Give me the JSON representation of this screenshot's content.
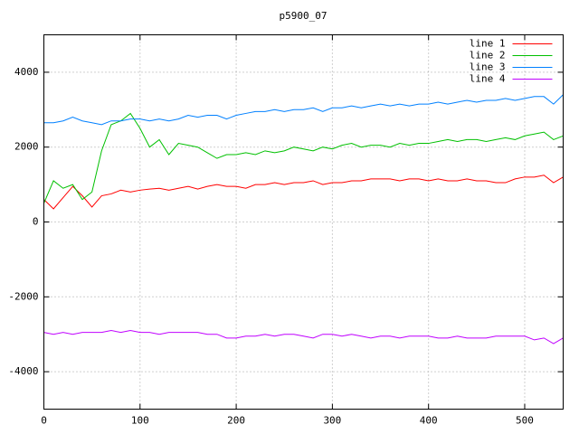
{
  "chart_data": {
    "type": "line",
    "title": "p5900_07",
    "x": [
      0,
      10,
      20,
      30,
      40,
      50,
      60,
      70,
      80,
      90,
      100,
      110,
      120,
      130,
      140,
      150,
      160,
      170,
      180,
      190,
      200,
      210,
      220,
      230,
      240,
      250,
      260,
      270,
      280,
      290,
      300,
      310,
      320,
      330,
      340,
      350,
      360,
      370,
      380,
      390,
      400,
      410,
      420,
      430,
      440,
      450,
      460,
      470,
      480,
      490,
      500,
      510,
      520,
      530,
      540
    ],
    "series": [
      {
        "name": "line 1",
        "color": "#ff0000",
        "values": [
          600,
          350,
          650,
          950,
          700,
          400,
          700,
          750,
          850,
          800,
          850,
          880,
          900,
          850,
          900,
          950,
          880,
          950,
          1000,
          950,
          950,
          900,
          1000,
          1000,
          1050,
          1000,
          1050,
          1050,
          1100,
          1000,
          1050,
          1050,
          1100,
          1100,
          1150,
          1150,
          1150,
          1100,
          1150,
          1150,
          1100,
          1150,
          1100,
          1100,
          1150,
          1100,
          1100,
          1050,
          1050,
          1150,
          1200,
          1200,
          1250,
          1050,
          1200
        ]
      },
      {
        "name": "line 2",
        "color": "#00c000",
        "values": [
          500,
          1100,
          900,
          1000,
          600,
          800,
          1900,
          2600,
          2700,
          2900,
          2500,
          2000,
          2200,
          1800,
          2100,
          2050,
          2000,
          1850,
          1700,
          1800,
          1800,
          1850,
          1800,
          1900,
          1850,
          1900,
          2000,
          1950,
          1900,
          2000,
          1950,
          2050,
          2100,
          2000,
          2050,
          2050,
          2000,
          2100,
          2050,
          2100,
          2100,
          2150,
          2200,
          2150,
          2200,
          2200,
          2150,
          2200,
          2250,
          2200,
          2300,
          2350,
          2400,
          2200,
          2300
        ]
      },
      {
        "name": "line 3",
        "color": "#0080ff",
        "values": [
          2650,
          2650,
          2700,
          2800,
          2700,
          2650,
          2600,
          2700,
          2700,
          2750,
          2750,
          2700,
          2750,
          2700,
          2750,
          2850,
          2800,
          2850,
          2850,
          2750,
          2850,
          2900,
          2950,
          2950,
          3000,
          2950,
          3000,
          3000,
          3050,
          2950,
          3050,
          3050,
          3100,
          3050,
          3100,
          3150,
          3100,
          3150,
          3100,
          3150,
          3150,
          3200,
          3150,
          3200,
          3250,
          3200,
          3250,
          3250,
          3300,
          3250,
          3300,
          3350,
          3350,
          3150,
          3400
        ]
      },
      {
        "name": "line 4",
        "color": "#c000ff",
        "values": [
          -2950,
          -3000,
          -2950,
          -3000,
          -2950,
          -2950,
          -2950,
          -2900,
          -2950,
          -2900,
          -2950,
          -2950,
          -3000,
          -2950,
          -2950,
          -2950,
          -2950,
          -3000,
          -3000,
          -3100,
          -3100,
          -3050,
          -3050,
          -3000,
          -3050,
          -3000,
          -3000,
          -3050,
          -3100,
          -3000,
          -3000,
          -3050,
          -3000,
          -3050,
          -3100,
          -3050,
          -3050,
          -3100,
          -3050,
          -3050,
          -3050,
          -3100,
          -3100,
          -3050,
          -3100,
          -3100,
          -3100,
          -3050,
          -3050,
          -3050,
          -3050,
          -3150,
          -3100,
          -3250,
          -3100
        ]
      }
    ],
    "xlim": [
      0,
      540
    ],
    "xticks": [
      0,
      100,
      200,
      300,
      400,
      500
    ],
    "ylim": [
      -5000,
      5000
    ],
    "yticks": [
      -4000,
      -2000,
      0,
      2000,
      4000
    ],
    "grid": true,
    "legend": "top-right"
  }
}
